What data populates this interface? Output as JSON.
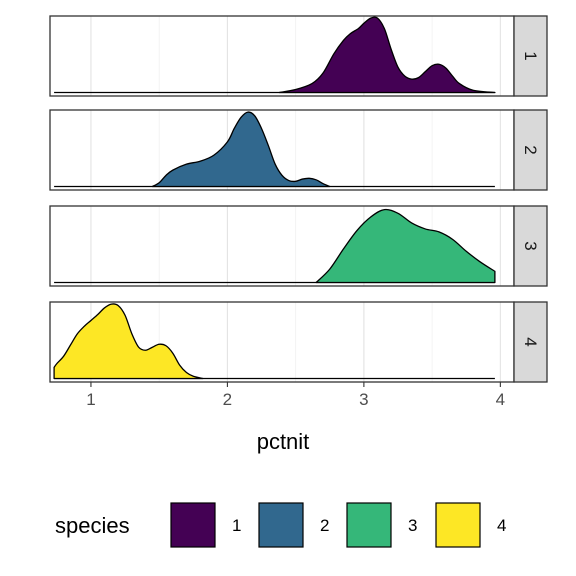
{
  "chart_data": {
    "type": "density",
    "facet_by": "species",
    "facets": [
      "1",
      "2",
      "3",
      "4"
    ],
    "xlabel": "pctnit",
    "xlim": [
      0.7,
      4.1
    ],
    "x_ticks": [
      1,
      2,
      3,
      4
    ],
    "x_tick_labels": [
      "1",
      "2",
      "3",
      "4"
    ],
    "legend": {
      "title": "species",
      "position": "bottom",
      "entries": [
        {
          "label": "1",
          "color": "#440154"
        },
        {
          "label": "2",
          "color": "#31688E"
        },
        {
          "label": "3",
          "color": "#35B779"
        },
        {
          "label": "4",
          "color": "#FDE725"
        }
      ]
    },
    "grid": true,
    "series": [
      {
        "name": "1",
        "color": "#440154",
        "x_range": [
          2.38,
          3.96
        ],
        "x": [
          2.38,
          2.5,
          2.62,
          2.7,
          2.78,
          2.85,
          2.9,
          2.96,
          3.0,
          3.05,
          3.1,
          3.15,
          3.2,
          3.25,
          3.3,
          3.35,
          3.4,
          3.45,
          3.5,
          3.55,
          3.6,
          3.65,
          3.7,
          3.8,
          3.96
        ],
        "y": [
          0.0,
          0.04,
          0.12,
          0.26,
          0.52,
          0.7,
          0.79,
          0.86,
          0.93,
          1.0,
          1.0,
          0.86,
          0.58,
          0.34,
          0.22,
          0.18,
          0.2,
          0.28,
          0.36,
          0.38,
          0.33,
          0.22,
          0.12,
          0.03,
          0.0
        ]
      },
      {
        "name": "2",
        "color": "#31688E",
        "x_range": [
          1.45,
          2.75
        ],
        "x": [
          1.45,
          1.5,
          1.55,
          1.6,
          1.7,
          1.8,
          1.9,
          2.0,
          2.05,
          2.1,
          2.15,
          2.2,
          2.25,
          2.3,
          2.35,
          2.4,
          2.45,
          2.5,
          2.55,
          2.6,
          2.65,
          2.7,
          2.75
        ],
        "y": [
          0.0,
          0.05,
          0.15,
          0.22,
          0.3,
          0.34,
          0.42,
          0.6,
          0.78,
          0.93,
          1.0,
          0.95,
          0.78,
          0.55,
          0.3,
          0.15,
          0.08,
          0.07,
          0.1,
          0.11,
          0.09,
          0.04,
          0.0
        ]
      },
      {
        "name": "3",
        "color": "#35B779",
        "x_range": [
          2.65,
          3.96
        ],
        "x": [
          2.65,
          2.75,
          2.85,
          2.95,
          3.05,
          3.15,
          3.25,
          3.35,
          3.45,
          3.55,
          3.65,
          3.75,
          3.85,
          3.96
        ],
        "y": [
          0.0,
          0.18,
          0.45,
          0.7,
          0.88,
          0.98,
          0.93,
          0.8,
          0.72,
          0.68,
          0.58,
          0.42,
          0.28,
          0.15
        ]
      },
      {
        "name": "4",
        "color": "#FDE725",
        "x_range": [
          0.73,
          1.82
        ],
        "x": [
          0.73,
          0.75,
          0.8,
          0.85,
          0.9,
          0.95,
          1.0,
          1.05,
          1.1,
          1.15,
          1.2,
          1.25,
          1.3,
          1.35,
          1.4,
          1.45,
          1.5,
          1.55,
          1.6,
          1.65,
          1.7,
          1.75,
          1.82
        ],
        "y": [
          0.15,
          0.2,
          0.3,
          0.45,
          0.6,
          0.7,
          0.78,
          0.86,
          0.95,
          1.0,
          0.98,
          0.85,
          0.6,
          0.42,
          0.38,
          0.42,
          0.46,
          0.44,
          0.34,
          0.18,
          0.08,
          0.03,
          0.0
        ]
      }
    ]
  }
}
